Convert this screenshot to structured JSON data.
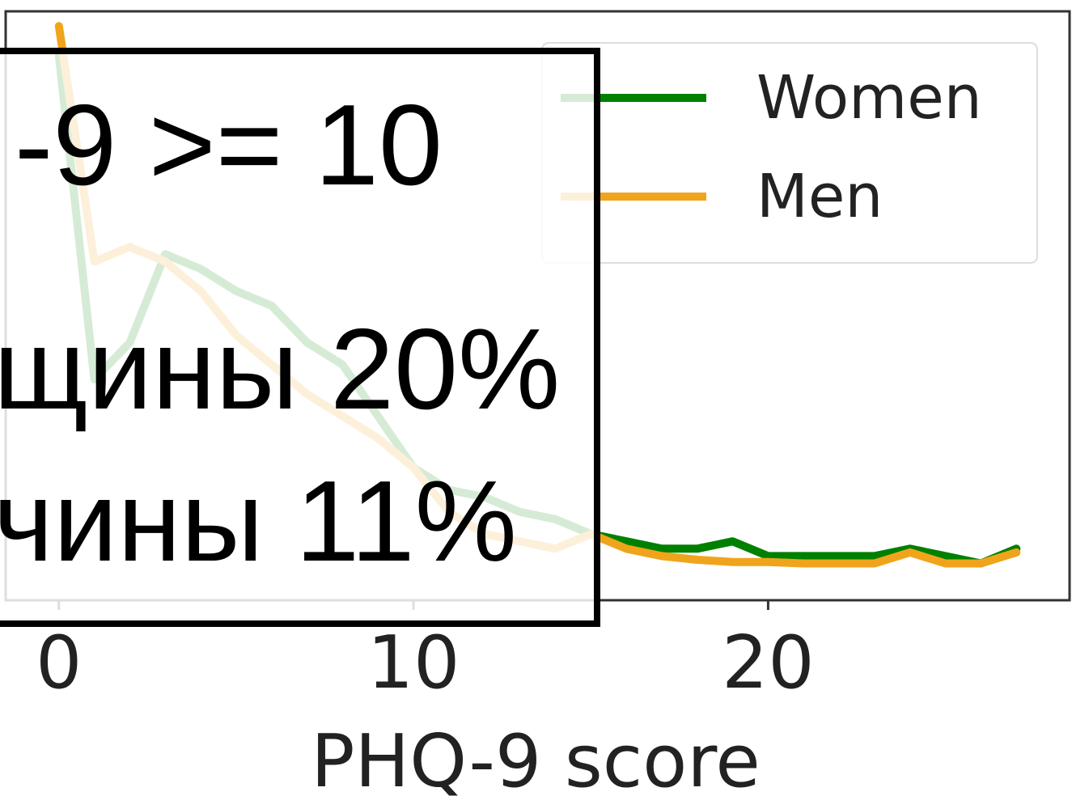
{
  "chart_data": {
    "type": "line",
    "xlabel": "PHQ-9 score",
    "ylabel": "",
    "xlim": [
      -1.5,
      28.5
    ],
    "x_ticks": [
      0,
      10,
      20
    ],
    "grid": false,
    "legend": {
      "placement": "top-right"
    },
    "series": [
      {
        "name": "Women",
        "color": "#008000",
        "x": [
          0,
          1,
          2,
          3,
          4,
          5,
          6,
          7,
          8,
          9,
          10,
          11,
          12,
          13,
          14,
          15,
          16,
          17,
          18,
          19,
          20,
          21,
          22,
          23,
          24,
          25,
          26,
          27
        ],
        "y": [
          0.112,
          0.068,
          0.073,
          0.085,
          0.083,
          0.08,
          0.078,
          0.073,
          0.07,
          0.063,
          0.056,
          0.053,
          0.052,
          0.05,
          0.049,
          0.047,
          0.046,
          0.045,
          0.045,
          0.046,
          0.044,
          0.044,
          0.044,
          0.044,
          0.045,
          0.044,
          0.043,
          0.045
        ]
      },
      {
        "name": "Men",
        "color": "#f0a41c",
        "x": [
          0,
          1,
          2,
          3,
          4,
          5,
          6,
          7,
          8,
          9,
          10,
          11,
          12,
          13,
          14,
          15,
          16,
          17,
          18,
          19,
          20,
          21,
          22,
          23,
          24,
          25,
          26,
          27
        ],
        "y": [
          0.116,
          0.084,
          0.086,
          0.084,
          0.08,
          0.074,
          0.07,
          0.066,
          0.063,
          0.06,
          0.056,
          0.05,
          0.047,
          0.046,
          0.045,
          0.047,
          0.045,
          0.044,
          0.0435,
          0.0432,
          0.0432,
          0.043,
          0.043,
          0.043,
          0.0445,
          0.043,
          0.043,
          0.0445
        ]
      }
    ]
  },
  "overlay": {
    "line1": "-9 >= 10",
    "line2": "щины 20%",
    "line3": "чины 11%"
  }
}
